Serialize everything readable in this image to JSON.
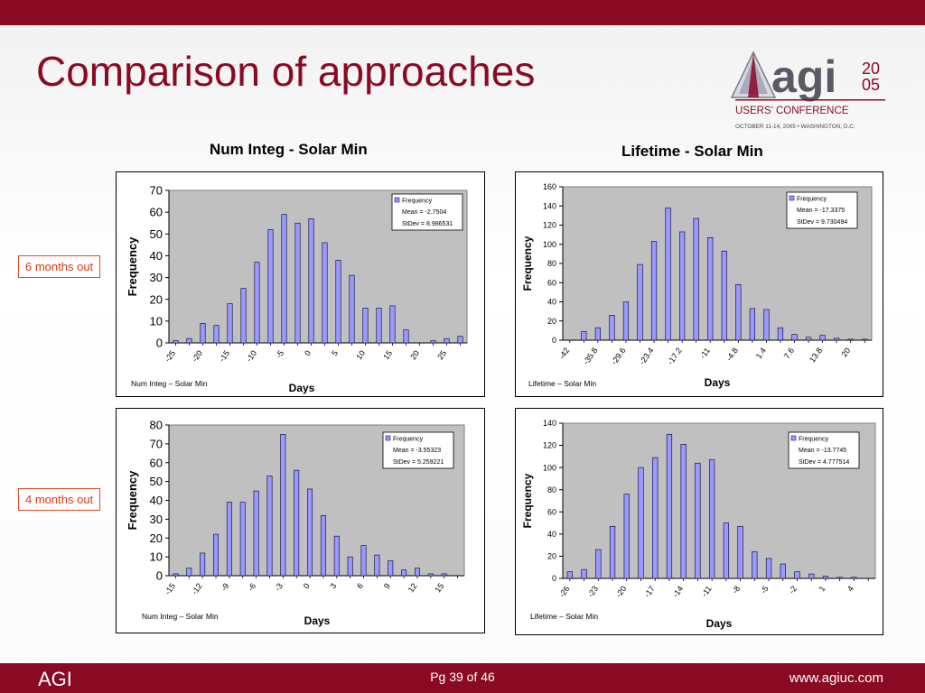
{
  "slide": {
    "title": "Comparison of approaches",
    "footer_left": "AGI",
    "footer_page": "Pg 39 of 46",
    "footer_url": "www.agiuc.com"
  },
  "logo": {
    "brand": "agi",
    "year_top": "20",
    "year_bottom": "05",
    "line1": "USERS’ CONFERENCE",
    "line2": "OCTOBER 11-14, 2005 • WASHINGTON, D.C."
  },
  "columns": {
    "left_title": "Num Integ - Solar Min",
    "right_title": "Lifetime - Solar Min"
  },
  "rows": {
    "top_label": "6 months out",
    "bottom_label": "4 months out"
  },
  "colors": {
    "brand": "#8a0a24",
    "bar": "#9999ff",
    "plot_bg": "#c0c0c0",
    "label_border": "#e0492b",
    "label_text": "#d63a1a"
  },
  "chart_data": [
    {
      "id": "num6",
      "type": "bar",
      "xlabel": "Days",
      "ylabel": "Frequency",
      "caption": "Num Integ – Solar Min",
      "ylim": [
        0,
        70
      ],
      "yticks": [
        "0",
        "10",
        "20",
        "30",
        "40",
        "50",
        "60",
        "70"
      ],
      "xtick_labels": [
        "-25",
        "-20",
        "-15",
        "-10",
        "-5",
        "0",
        "5",
        "10",
        "15",
        "20",
        "25"
      ],
      "x": [
        -25,
        -22.5,
        -20,
        -17.5,
        -15,
        -12.5,
        -10,
        -7.5,
        -5,
        -2.5,
        0,
        2.5,
        5,
        7.5,
        10,
        12.5,
        15,
        17.5,
        20,
        22.5,
        25,
        27.5
      ],
      "series": [
        {
          "name": "Frequency",
          "values": [
            1,
            2,
            9,
            8,
            18,
            25,
            37,
            52,
            59,
            55,
            57,
            46,
            38,
            31,
            16,
            16,
            17,
            6,
            0,
            1,
            2,
            3
          ]
        }
      ],
      "legend": {
        "entry": "Frequency",
        "mean": "Mean = -2.7504",
        "stdev": "StDev = 8.986531"
      }
    },
    {
      "id": "life6",
      "type": "bar",
      "xlabel": "Days",
      "ylabel": "Frequency",
      "caption": "Lifetime – Solar Min",
      "ylim": [
        0,
        160
      ],
      "yticks": [
        "0",
        "20",
        "40",
        "60",
        "80",
        "100",
        "120",
        "140",
        "160"
      ],
      "xtick_labels": [
        "-42",
        "-35.8",
        "-29.6",
        "-23.4",
        "-17.2",
        "-11",
        "-4.8",
        "1.4",
        "7.6",
        "13.8",
        "20"
      ],
      "x": [
        -42,
        -38.9,
        -35.8,
        -32.7,
        -29.6,
        -26.5,
        -23.4,
        -20.3,
        -17.2,
        -14.1,
        -11,
        -7.9,
        -4.8,
        -1.7,
        1.4,
        4.5,
        7.6,
        10.7,
        13.8,
        16.9,
        20,
        23.1
      ],
      "series": [
        {
          "name": "Frequency",
          "values": [
            0,
            9,
            13,
            26,
            40,
            79,
            103,
            138,
            113,
            127,
            107,
            93,
            58,
            33,
            32,
            13,
            6,
            3,
            5,
            2,
            1,
            1
          ]
        }
      ],
      "legend": {
        "entry": "Frequency",
        "mean": "Mean = -17.3375",
        "stdev": "StDev = 9.730494"
      }
    },
    {
      "id": "num4",
      "type": "bar",
      "xlabel": "Days",
      "ylabel": "Frequency",
      "caption": "Num Integ – Solar Min",
      "ylim": [
        0,
        80
      ],
      "yticks": [
        "0",
        "10",
        "20",
        "30",
        "40",
        "50",
        "60",
        "70",
        "80"
      ],
      "xtick_labels": [
        "-15",
        "-12",
        "-9",
        "-6",
        "-3",
        "0",
        "3",
        "6",
        "9",
        "12",
        "15"
      ],
      "x": [
        -15,
        -13.5,
        -12,
        -10.5,
        -9,
        -7.5,
        -6,
        -4.5,
        -3,
        -1.5,
        0,
        1.5,
        3,
        4.5,
        6,
        7.5,
        9,
        10.5,
        12,
        13.5,
        15,
        16.5
      ],
      "series": [
        {
          "name": "Frequency",
          "values": [
            1,
            4,
            12,
            22,
            39,
            39,
            45,
            53,
            75,
            56,
            46,
            32,
            21,
            10,
            16,
            11,
            8,
            3,
            4,
            1,
            1,
            0
          ]
        }
      ],
      "legend": {
        "entry": "Frequency",
        "mean": "Mean = -3.55323",
        "stdev": "StDev = 5.259221"
      }
    },
    {
      "id": "life4",
      "type": "bar",
      "xlabel": "Days",
      "ylabel": "Frequency",
      "caption": "Lifetime – Solar Min",
      "ylim": [
        0,
        140
      ],
      "yticks": [
        "0",
        "20",
        "40",
        "60",
        "80",
        "100",
        "120",
        "140"
      ],
      "xtick_labels": [
        "-26",
        "-23",
        "-20",
        "-17",
        "-14",
        "-11",
        "-8",
        "-5",
        "-2",
        "1",
        "4"
      ],
      "x": [
        -26,
        -24.5,
        -23,
        -21.5,
        -20,
        -18.5,
        -17,
        -15.5,
        -14,
        -12.5,
        -11,
        -9.5,
        -8,
        -6.5,
        -5,
        -3.5,
        -2,
        -0.5,
        1,
        2.5,
        4,
        5.5
      ],
      "series": [
        {
          "name": "Frequency",
          "values": [
            6,
            8,
            26,
            47,
            76,
            100,
            109,
            130,
            121,
            104,
            107,
            50,
            47,
            24,
            18,
            13,
            6,
            4,
            2,
            1,
            1,
            0
          ]
        }
      ],
      "legend": {
        "entry": "Frequency",
        "mean": "Mean = -13.7745",
        "stdev": "StDev = 4.777514"
      }
    }
  ]
}
